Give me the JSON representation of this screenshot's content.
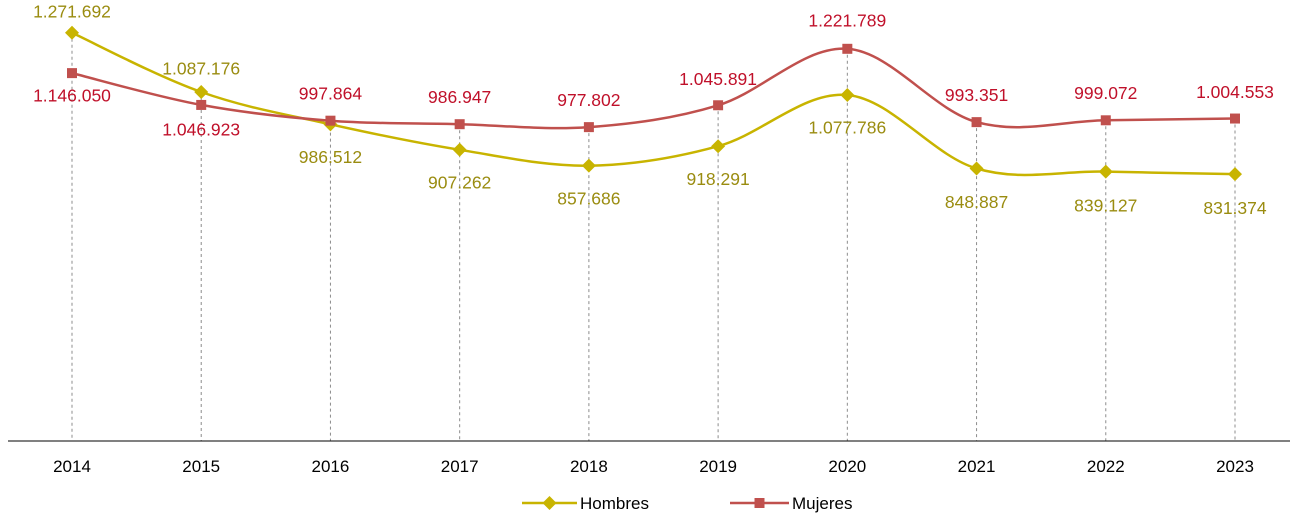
{
  "chart_data": {
    "type": "line",
    "title": "",
    "xlabel": "",
    "ylabel": "",
    "categories": [
      "2014",
      "2015",
      "2016",
      "2017",
      "2018",
      "2019",
      "2020",
      "2021",
      "2022",
      "2023"
    ],
    "ylim": [
      0,
      1350000
    ],
    "grid": false,
    "legend_position": "bottom-center",
    "series": [
      {
        "name": "Hombres",
        "color": "#c8b400",
        "label_color": "#9a8c10",
        "marker": "diamond",
        "values": [
          1271692,
          1087176,
          986512,
          907262,
          857686,
          918291,
          1077786,
          848887,
          839127,
          831374
        ],
        "labels": [
          "1.271.692",
          "1.087.176",
          "986.512",
          "907.262",
          "857.686",
          "918.291",
          "1.077.786",
          "848.887",
          "839.127",
          "831.374"
        ]
      },
      {
        "name": "Mujeres",
        "color": "#c0504d",
        "label_color": "#c0102a",
        "marker": "square",
        "values": [
          1146050,
          1046923,
          997864,
          986947,
          977802,
          1045891,
          1221789,
          993351,
          999072,
          1004553
        ],
        "labels": [
          "1.146.050",
          "1.046.923",
          "997.864",
          "986.947",
          "977.802",
          "1.045.891",
          "1.221.789",
          "993.351",
          "999.072",
          "1.004.553"
        ]
      }
    ]
  }
}
